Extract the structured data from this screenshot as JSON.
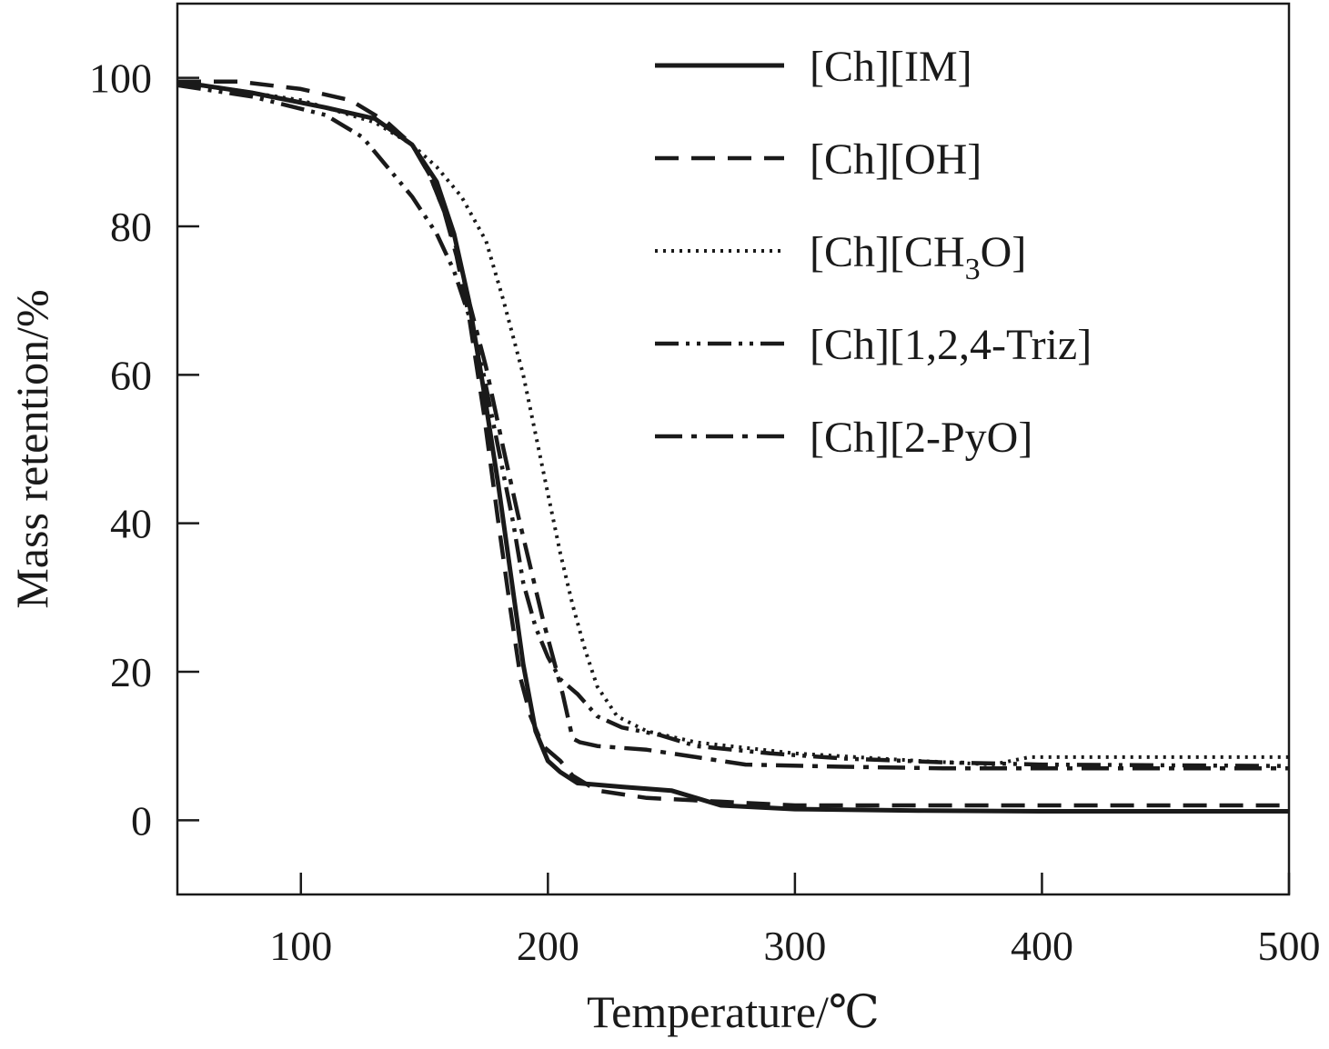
{
  "chart_data": {
    "type": "line",
    "title": "",
    "xlabel": "Temperature/℃",
    "ylabel": "Mass retention/%",
    "xlim": [
      50,
      500
    ],
    "ylim": [
      -10,
      110
    ],
    "x_ticks": [
      100,
      200,
      300,
      400,
      500
    ],
    "y_ticks": [
      0,
      20,
      40,
      60,
      80,
      100
    ],
    "grid": false,
    "legend_position": "top-right",
    "series": [
      {
        "name": "[Ch][IM]",
        "style": "solid",
        "points": [
          [
            50,
            99.5
          ],
          [
            80,
            98
          ],
          [
            110,
            96
          ],
          [
            130,
            94.5
          ],
          [
            145,
            91
          ],
          [
            155,
            86
          ],
          [
            162,
            79
          ],
          [
            168,
            70
          ],
          [
            174,
            58
          ],
          [
            180,
            45
          ],
          [
            185,
            33
          ],
          [
            190,
            21
          ],
          [
            195,
            12
          ],
          [
            200,
            8
          ],
          [
            205,
            6.5
          ],
          [
            212,
            5
          ],
          [
            230,
            4.5
          ],
          [
            250,
            4
          ],
          [
            260,
            3
          ],
          [
            270,
            2
          ],
          [
            300,
            1.5
          ],
          [
            350,
            1.3
          ],
          [
            400,
            1.2
          ],
          [
            450,
            1.2
          ],
          [
            500,
            1.2
          ]
        ]
      },
      {
        "name": "[Ch][OH]",
        "style": "dashed",
        "points": [
          [
            50,
            99.5
          ],
          [
            75,
            99.5
          ],
          [
            100,
            98.5
          ],
          [
            120,
            97
          ],
          [
            135,
            94
          ],
          [
            145,
            91
          ],
          [
            152,
            87
          ],
          [
            158,
            82
          ],
          [
            163,
            76
          ],
          [
            168,
            68
          ],
          [
            174,
            55
          ],
          [
            180,
            40
          ],
          [
            185,
            28
          ],
          [
            189,
            19
          ],
          [
            193,
            14
          ],
          [
            198,
            10
          ],
          [
            205,
            8
          ],
          [
            210,
            6
          ],
          [
            220,
            4
          ],
          [
            240,
            3
          ],
          [
            270,
            2.5
          ],
          [
            300,
            2
          ],
          [
            400,
            2
          ],
          [
            500,
            2
          ]
        ]
      },
      {
        "name": "[Ch][CH₃O]",
        "series_label_parts": [
          "[Ch][CH",
          "3",
          "O]"
        ],
        "style": "dotted",
        "points": [
          [
            50,
            99.5
          ],
          [
            100,
            97
          ],
          [
            130,
            94
          ],
          [
            145,
            91
          ],
          [
            155,
            88
          ],
          [
            165,
            84
          ],
          [
            175,
            78
          ],
          [
            182,
            70
          ],
          [
            190,
            60
          ],
          [
            195,
            52
          ],
          [
            200,
            44
          ],
          [
            205,
            36
          ],
          [
            210,
            29
          ],
          [
            215,
            23
          ],
          [
            220,
            18
          ],
          [
            228,
            14
          ],
          [
            240,
            12
          ],
          [
            260,
            10.5
          ],
          [
            300,
            9
          ],
          [
            350,
            8
          ],
          [
            380,
            7.5
          ],
          [
            395,
            8.5
          ],
          [
            420,
            8.5
          ],
          [
            460,
            8.5
          ],
          [
            500,
            8.5
          ]
        ]
      },
      {
        "name": "[Ch][1,2,4-Triz]",
        "style": "dash-dot-dot",
        "points": [
          [
            50,
            99
          ],
          [
            80,
            97.5
          ],
          [
            110,
            95
          ],
          [
            125,
            92
          ],
          [
            135,
            88
          ],
          [
            145,
            84
          ],
          [
            155,
            79
          ],
          [
            162,
            74
          ],
          [
            168,
            68
          ],
          [
            174,
            60
          ],
          [
            180,
            50
          ],
          [
            186,
            40
          ],
          [
            190,
            32
          ],
          [
            195,
            26
          ],
          [
            200,
            22
          ],
          [
            205,
            19
          ],
          [
            212,
            17
          ],
          [
            220,
            14
          ],
          [
            230,
            12.5
          ],
          [
            245,
            11.5
          ],
          [
            260,
            10
          ],
          [
            290,
            9
          ],
          [
            320,
            8.3
          ],
          [
            360,
            7.8
          ],
          [
            400,
            7.5
          ],
          [
            450,
            7.4
          ],
          [
            500,
            7.3
          ]
        ]
      },
      {
        "name": "[Ch][2-PyO]",
        "style": "dash-dot",
        "points": [
          [
            50,
            99.5
          ],
          [
            80,
            98
          ],
          [
            110,
            96
          ],
          [
            130,
            94.5
          ],
          [
            145,
            91
          ],
          [
            152,
            87
          ],
          [
            158,
            82
          ],
          [
            163,
            77
          ],
          [
            168,
            70
          ],
          [
            175,
            61
          ],
          [
            182,
            50
          ],
          [
            188,
            41
          ],
          [
            193,
            34
          ],
          [
            198,
            27
          ],
          [
            202,
            22
          ],
          [
            206,
            17
          ],
          [
            210,
            11
          ],
          [
            213,
            10.5
          ],
          [
            220,
            10
          ],
          [
            240,
            9.5
          ],
          [
            260,
            8.5
          ],
          [
            280,
            7.5
          ],
          [
            320,
            7.2
          ],
          [
            360,
            7
          ],
          [
            400,
            7
          ],
          [
            450,
            7
          ],
          [
            500,
            7
          ]
        ]
      }
    ]
  }
}
